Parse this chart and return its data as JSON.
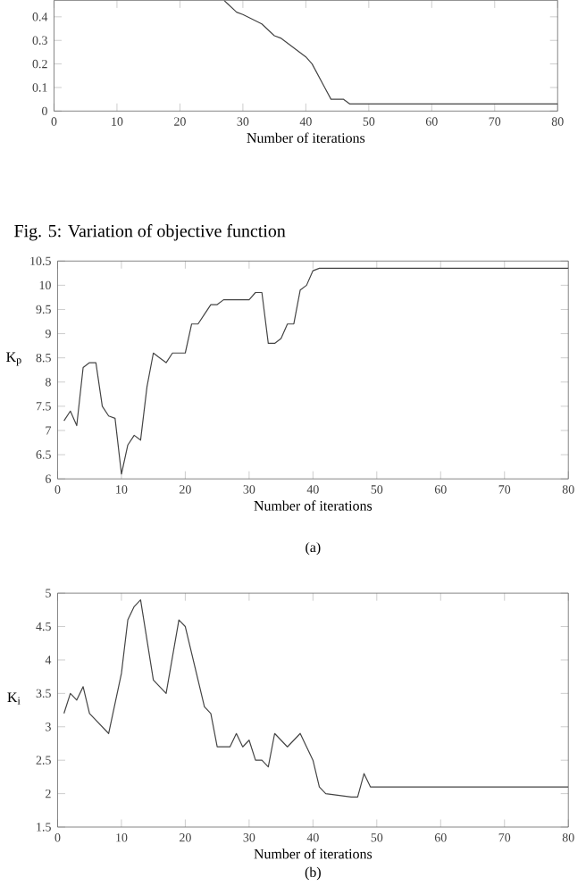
{
  "chart_data": [
    {
      "type": "line",
      "color": "#444444",
      "xlim": [
        0,
        80
      ],
      "ylim": [
        0,
        0.47
      ],
      "xticks": [
        0,
        10,
        20,
        30,
        40,
        50,
        60,
        70,
        80
      ],
      "yticks": [
        0,
        0.1,
        0.2,
        0.3,
        0.4
      ],
      "xlabel": "Number of iterations",
      "x": [
        27,
        29,
        30,
        33,
        35,
        36,
        38,
        40,
        41,
        43,
        44,
        46,
        47,
        80
      ],
      "values": [
        0.47,
        0.42,
        0.41,
        0.37,
        0.32,
        0.31,
        0.27,
        0.23,
        0.2,
        0.1,
        0.05,
        0.05,
        0.03,
        0.03
      ],
      "annotations": [
        "Fig. 5: Variation of objective function"
      ]
    },
    {
      "type": "line",
      "color": "#444444",
      "xlim": [
        0,
        80
      ],
      "ylim": [
        6,
        10.5
      ],
      "xticks": [
        0,
        10,
        20,
        30,
        40,
        50,
        60,
        70,
        80
      ],
      "yticks": [
        6,
        6.5,
        7,
        7.5,
        8,
        8.5,
        9,
        9.5,
        10,
        10.5
      ],
      "xlabel": "Number of iterations",
      "ylabel": "K$_{p}$",
      "x": [
        1,
        2,
        3,
        4,
        5,
        6,
        7,
        8,
        9,
        10,
        11,
        12,
        13,
        14,
        15,
        16,
        17,
        18,
        19,
        20,
        21,
        22,
        23,
        24,
        25,
        26,
        27,
        30,
        31,
        32,
        33,
        34,
        35,
        36,
        37,
        38,
        39,
        40,
        41,
        80
      ],
      "values": [
        7.2,
        7.4,
        7.1,
        8.3,
        8.4,
        8.4,
        7.5,
        7.3,
        7.25,
        6.1,
        6.7,
        6.9,
        6.8,
        7.9,
        8.6,
        8.5,
        8.4,
        8.6,
        8.6,
        8.6,
        9.2,
        9.2,
        9.4,
        9.6,
        9.6,
        9.7,
        9.7,
        9.7,
        9.85,
        9.85,
        8.8,
        8.8,
        8.9,
        9.2,
        9.2,
        9.9,
        10.0,
        10.3,
        10.35,
        10.35
      ],
      "annotations": [
        "(a)"
      ]
    },
    {
      "type": "line",
      "color": "#444444",
      "xlim": [
        0,
        80
      ],
      "ylim": [
        1.5,
        5
      ],
      "xticks": [
        0,
        10,
        20,
        30,
        40,
        50,
        60,
        70,
        80
      ],
      "yticks": [
        1.5,
        2,
        2.5,
        3,
        3.5,
        4,
        4.5,
        5
      ],
      "xlabel": "Number of iterations",
      "ylabel": "K$_{i}$",
      "x": [
        1,
        2,
        3,
        4,
        5,
        8,
        10,
        11,
        12,
        13,
        15,
        17,
        19,
        20,
        23,
        24,
        25,
        27,
        28,
        29,
        30,
        31,
        32,
        33,
        34,
        36,
        38,
        40,
        41,
        42,
        46,
        47,
        48,
        49,
        80
      ],
      "values": [
        3.2,
        3.5,
        3.4,
        3.6,
        3.2,
        2.9,
        3.8,
        4.6,
        4.8,
        4.9,
        3.7,
        3.5,
        4.6,
        4.5,
        3.3,
        3.2,
        2.7,
        2.7,
        2.9,
        2.7,
        2.8,
        2.5,
        2.5,
        2.4,
        2.9,
        2.7,
        2.9,
        2.5,
        2.1,
        2.0,
        1.95,
        1.95,
        2.3,
        2.1,
        2.1
      ],
      "annotations": [
        "(b)"
      ]
    }
  ]
}
